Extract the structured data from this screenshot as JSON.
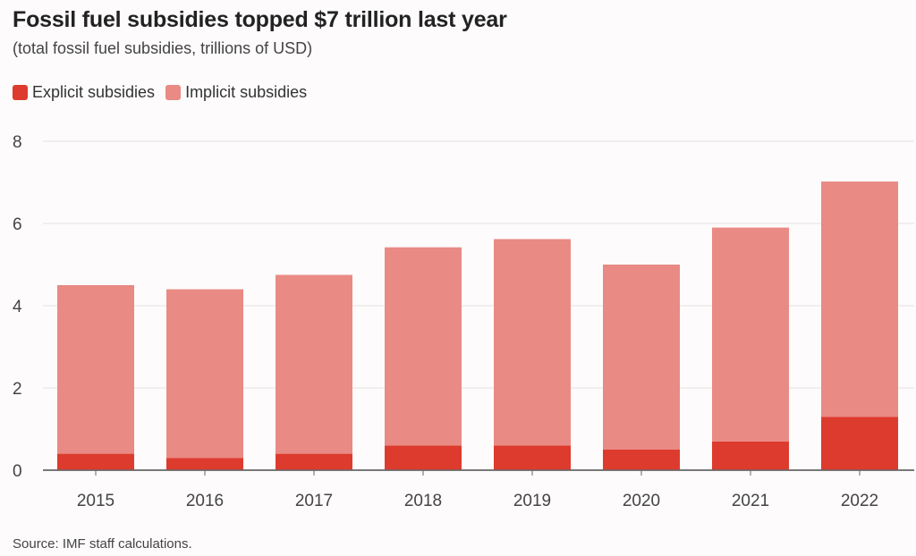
{
  "header": {
    "title": "Fossil fuel subsidies topped $7 trillion last year",
    "subtitle": "(total fossil fuel subsidies, trillions of USD)"
  },
  "footer": {
    "source": "Source: IMF staff calculations."
  },
  "colors": {
    "explicit": "#dd3b2e",
    "implicit": "#e98a84",
    "grid": "#e6e2e2",
    "axis": "#666666"
  },
  "chart_data": {
    "type": "bar",
    "stacked": true,
    "categories": [
      "2015",
      "2016",
      "2017",
      "2018",
      "2019",
      "2020",
      "2021",
      "2022"
    ],
    "series": [
      {
        "name": "Explicit subsidies",
        "values": [
          0.4,
          0.3,
          0.4,
          0.6,
          0.6,
          0.5,
          0.7,
          1.3
        ]
      },
      {
        "name": "Implicit subsidies",
        "values": [
          4.1,
          4.1,
          4.35,
          4.82,
          5.02,
          4.5,
          5.2,
          5.72
        ]
      }
    ],
    "ylim": [
      0,
      8
    ],
    "yticks": [
      0,
      2,
      4,
      6,
      8
    ],
    "legend_position": "top-left",
    "grid": true
  }
}
